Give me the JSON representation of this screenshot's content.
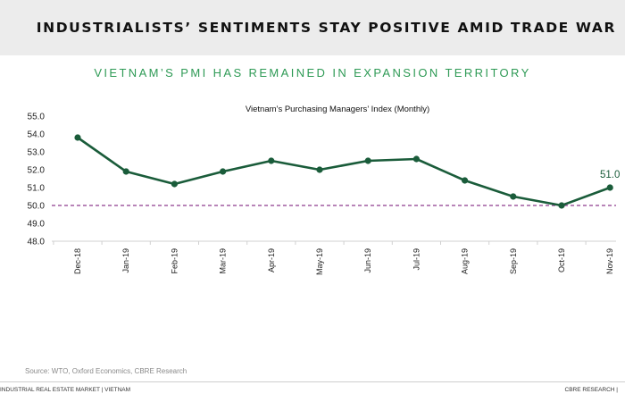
{
  "header": {
    "title": "INDUSTRIALISTS’ SENTIMENTS STAY POSITIVE AMID TRADE WAR"
  },
  "subtitle": "VIETNAM’S PMI HAS REMAINED IN EXPANSION TERRITORY",
  "chart_data": {
    "type": "line",
    "title": "Vietnam’s Purchasing Managers’ Index (Monthly)",
    "xlabel": "",
    "ylabel": "",
    "categories": [
      "Dec-18",
      "Jan-19",
      "Feb-19",
      "Mar-19",
      "Apr-19",
      "May-19",
      "Jun-19",
      "Jul-19",
      "Aug-19",
      "Sep-19",
      "Oct-19",
      "Nov-19"
    ],
    "series": [
      {
        "name": "PMI",
        "values": [
          53.8,
          51.9,
          51.2,
          51.9,
          52.5,
          52.0,
          52.5,
          52.6,
          51.4,
          50.5,
          50.0,
          51.0
        ]
      }
    ],
    "ylim": [
      48.0,
      55.0
    ],
    "yticks": [
      "48.0",
      "49.0",
      "50.0",
      "51.0",
      "52.0",
      "53.0",
      "54.0",
      "55.0"
    ],
    "reference_line": {
      "value": 50.0,
      "style": "dashed"
    },
    "annotations": [
      {
        "category": "Nov-19",
        "label": "51.0"
      }
    ],
    "grid": false,
    "legend": "none",
    "colors": {
      "line": "#1a5c3a",
      "reference": "#8e3a8e",
      "label": "#1a5c3a",
      "axis": "#d0d0d0"
    }
  },
  "source": "Source:  WTO, Oxford Economics, CBRE Research",
  "footer": {
    "left": "INDUSTRIAL REAL ESTATE MARKET | VIETNAM",
    "right": "CBRE RESEARCH |"
  }
}
